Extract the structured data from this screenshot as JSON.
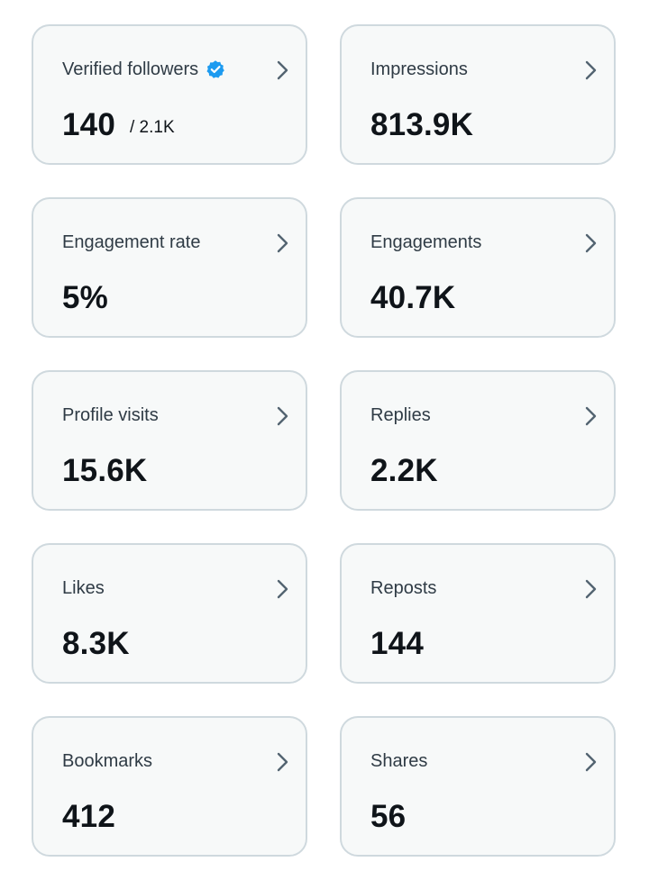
{
  "accent_color": "#1d9bf0",
  "cards": [
    {
      "label": "Verified followers",
      "value": "140",
      "sub": "/ 2.1K",
      "badge": "verified-badge-icon"
    },
    {
      "label": "Impressions",
      "value": "813.9K"
    },
    {
      "label": "Engagement rate",
      "value": "5%"
    },
    {
      "label": "Engagements",
      "value": "40.7K"
    },
    {
      "label": "Profile visits",
      "value": "15.6K"
    },
    {
      "label": "Replies",
      "value": "2.2K"
    },
    {
      "label": "Likes",
      "value": "8.3K"
    },
    {
      "label": "Reposts",
      "value": "144"
    },
    {
      "label": "Bookmarks",
      "value": "412"
    },
    {
      "label": "Shares",
      "value": "56"
    }
  ]
}
